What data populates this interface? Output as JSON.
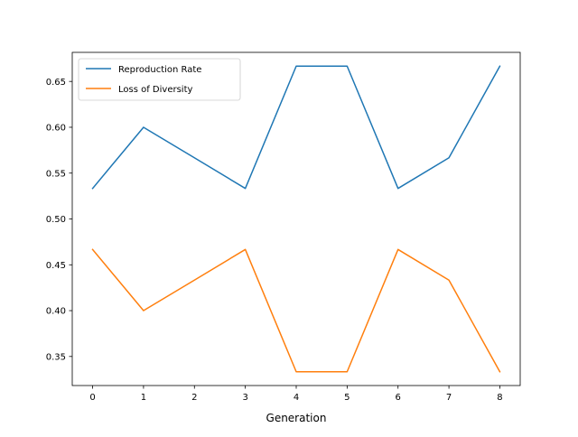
{
  "chart_data": {
    "type": "line",
    "title": "",
    "xlabel": "Generation",
    "ylabel": "",
    "x": [
      0,
      1,
      2,
      3,
      4,
      5,
      6,
      7,
      8
    ],
    "xlim": [
      -0.4,
      8.4
    ],
    "ylim": [
      0.3183,
      0.6817
    ],
    "xticks": [
      0,
      1,
      2,
      3,
      4,
      5,
      6,
      7,
      8
    ],
    "yticks": [
      0.35,
      0.4,
      0.45,
      0.5,
      0.55,
      0.6,
      0.65
    ],
    "ytick_labels": [
      "0.35",
      "0.40",
      "0.45",
      "0.50",
      "0.55",
      "0.60",
      "0.65"
    ],
    "grid": false,
    "legend_position": "upper-left",
    "series": [
      {
        "name": "Reproduction Rate",
        "color": "#1f77b4",
        "values": [
          0.5333,
          0.6,
          0.5667,
          0.5333,
          0.6667,
          0.6667,
          0.5333,
          0.5667,
          0.6667
        ]
      },
      {
        "name": "Loss of Diversity",
        "color": "#ff7f0e",
        "values": [
          0.4667,
          0.4,
          0.4333,
          0.4667,
          0.3333,
          0.3333,
          0.4667,
          0.4333,
          0.3333
        ]
      }
    ]
  }
}
